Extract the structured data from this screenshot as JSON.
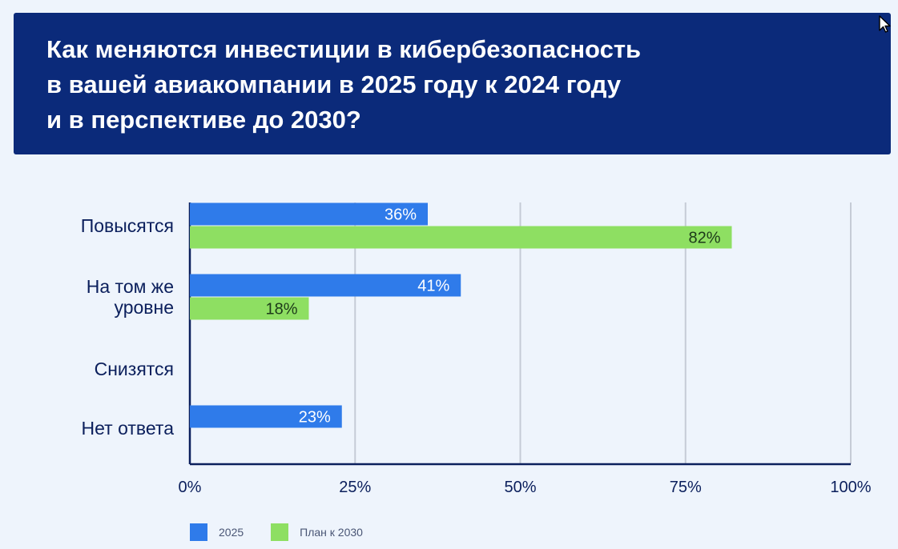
{
  "chart_data": {
    "type": "bar",
    "orientation": "horizontal",
    "title": "Как меняются инвестиции в кибербезопасность\nв вашей авиакомпании в 2025 году к 2024 году\nи в перспективе до 2030?",
    "categories": [
      "Повысятся",
      "На том же\nуровне",
      "Снизятся",
      "Нет ответа"
    ],
    "series": [
      {
        "name": "2025",
        "color": "#2f7bea",
        "values": [
          36,
          41,
          null,
          23
        ],
        "labels": [
          "36%",
          "41%",
          "",
          "23%"
        ]
      },
      {
        "name": "План к 2030",
        "color": "#8edf62",
        "values": [
          82,
          18,
          null,
          null
        ],
        "labels": [
          "82%",
          "18%",
          "",
          ""
        ]
      }
    ],
    "xlim": [
      0,
      100
    ],
    "xticks": [
      0,
      25,
      50,
      75,
      100
    ],
    "xtick_labels": [
      "0%",
      "25%",
      "50%",
      "75%",
      "100%"
    ],
    "grid": true,
    "legend_position": "bottom-left"
  }
}
